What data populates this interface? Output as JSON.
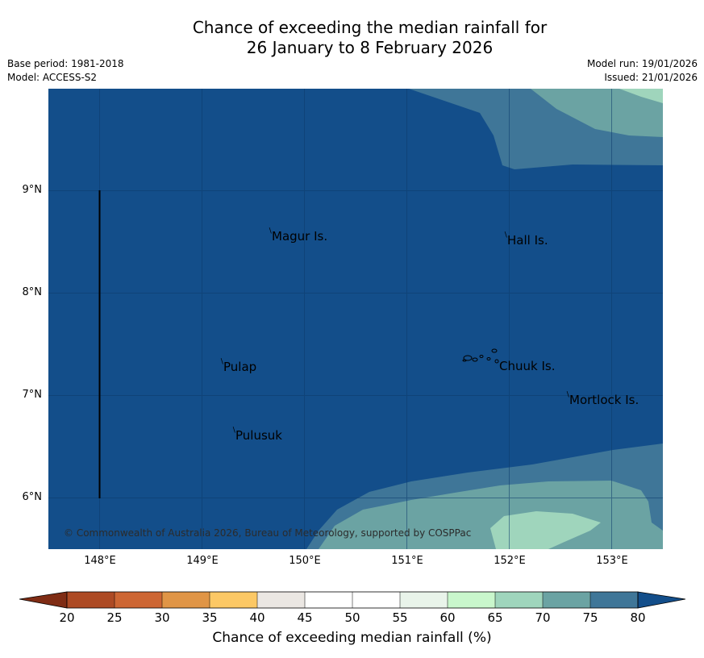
{
  "title": {
    "line1": "Chance of exceeding the median rainfall for",
    "line2": "26 January to 8 February 2026"
  },
  "meta": {
    "base_period": "Base period: 1981-2018",
    "model": "Model: ACCESS-S2",
    "model_run": "Model run: 19/01/2026",
    "issued": "Issued: 21/01/2026"
  },
  "map": {
    "lat_labels": [
      "9°N",
      "8°N",
      "7°N",
      "6°N"
    ],
    "lon_labels": [
      "148°E",
      "149°E",
      "150°E",
      "151°E",
      "152°E",
      "153°E"
    ],
    "places": [
      "Magur Is.",
      "Hall Is.",
      "Pulap",
      "Chuuk Is.",
      "Mortlock Is.",
      "Pulusuk"
    ],
    "copyright": "© Commonwealth of Australia 2026, Bureau of Meteorology, supported by COSPPac",
    "colors": {
      "above_80": "#134e8a",
      "75_80": "#3f7698",
      "70_75": "#6ba3a3",
      "65_70": "#9fd5bc",
      "60_65": "#c9f7cc"
    }
  },
  "colorbar": {
    "labels": [
      "20",
      "25",
      "30",
      "35",
      "40",
      "45",
      "50",
      "55",
      "60",
      "65",
      "70",
      "75",
      "80"
    ],
    "colors": [
      "#7f2c14",
      "#ad4a24",
      "#cd6633",
      "#e09546",
      "#fcc865",
      "#ebe7e3",
      "#ffffff",
      "#ffffff",
      "#e9f4ea",
      "#c9f7cc",
      "#9fd5bc",
      "#6ba3a3",
      "#3f7698",
      "#134e8a"
    ],
    "title": "Chance of exceeding median rainfall (%)"
  }
}
